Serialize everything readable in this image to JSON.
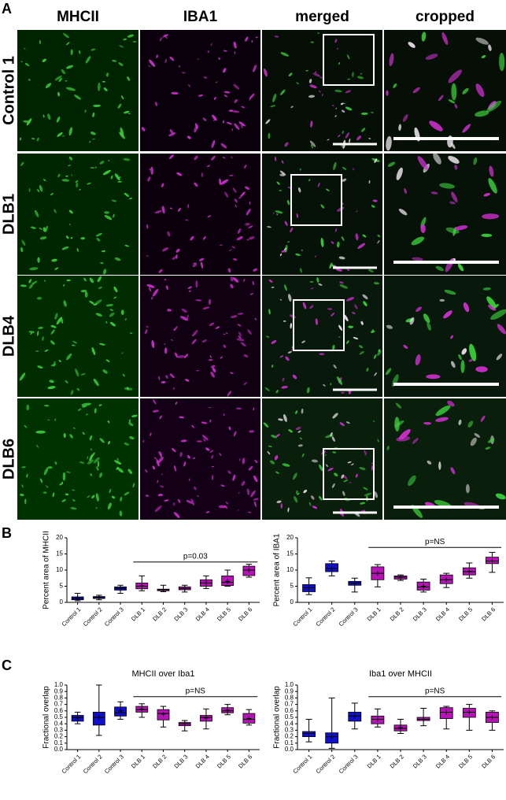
{
  "panel_a": {
    "columns": [
      "MHCII",
      "IBA1",
      "merged",
      "cropped"
    ],
    "rows": [
      "Control 1",
      "DLB1",
      "DLB4",
      "DLB6"
    ]
  },
  "panel_labels": [
    "A",
    "B",
    "C"
  ],
  "chart_data": [
    {
      "type": "box",
      "ylabel": "Percent area of MHCII",
      "ylim": [
        0,
        20
      ],
      "yticks": [
        0,
        5,
        10,
        15,
        20
      ],
      "categories": [
        "Control 1",
        "Control 2",
        "Control 3",
        "DLB 1",
        "DLB 2",
        "DLB 3",
        "DLB 4",
        "DLB 5",
        "DLB 6"
      ],
      "colors": [
        "#1010c8",
        "#1010c8",
        "#1010c8",
        "#b414b4",
        "#b414b4",
        "#b414b4",
        "#b414b4",
        "#b414b4",
        "#b414b4"
      ],
      "annotation": {
        "text": "p=0.03",
        "y": 12.5
      },
      "values": [
        {
          "min": 0.5,
          "q1": 0.8,
          "median": 1.2,
          "q3": 1.7,
          "max": 2.8,
          "mean": 1.3
        },
        {
          "min": 0.8,
          "q1": 1.2,
          "median": 1.5,
          "q3": 1.8,
          "max": 2.2,
          "mean": 1.5
        },
        {
          "min": 2.8,
          "q1": 3.8,
          "median": 4.3,
          "q3": 4.8,
          "max": 5.3,
          "mean": 4.3
        },
        {
          "min": 3.6,
          "q1": 4.2,
          "median": 5,
          "q3": 6,
          "max": 8.2,
          "mean": 5.1
        },
        {
          "min": 3.3,
          "q1": 3.6,
          "median": 3.9,
          "q3": 4.1,
          "max": 5.3,
          "mean": 3.9
        },
        {
          "min": 3.2,
          "q1": 3.9,
          "median": 4.3,
          "q3": 4.8,
          "max": 5.3,
          "mean": 4.3
        },
        {
          "min": 4.3,
          "q1": 5,
          "median": 6,
          "q3": 7,
          "max": 8.2,
          "mean": 6
        },
        {
          "min": 5,
          "q1": 5.2,
          "median": 6.2,
          "q3": 8.2,
          "max": 10,
          "mean": 6.5
        },
        {
          "min": 7.8,
          "q1": 8.3,
          "median": 10,
          "q3": 11.2,
          "max": 11.8,
          "mean": 10
        }
      ]
    },
    {
      "type": "box",
      "ylabel": "Percent area of IBA1",
      "ylim": [
        0,
        20
      ],
      "yticks": [
        0,
        5,
        10,
        15,
        20
      ],
      "categories": [
        "Control 1",
        "Control 2",
        "Control 3",
        "DLB 1",
        "DLB 2",
        "DLB 3",
        "DLB 4",
        "DLB 5",
        "DLB 6"
      ],
      "colors": [
        "#1010c8",
        "#1010c8",
        "#1010c8",
        "#b414b4",
        "#b414b4",
        "#b414b4",
        "#b414b4",
        "#b414b4",
        "#b414b4"
      ],
      "annotation": {
        "text": "p=NS",
        "y": 17
      },
      "values": [
        {
          "min": 2.4,
          "q1": 3.3,
          "median": 4.5,
          "q3": 5.5,
          "max": 7.6,
          "mean": 4.5
        },
        {
          "min": 8.2,
          "q1": 9.5,
          "median": 10.5,
          "q3": 12,
          "max": 12.8,
          "mean": 10.5
        },
        {
          "min": 3.2,
          "q1": 5.3,
          "median": 6,
          "q3": 6.5,
          "max": 7.5,
          "mean": 5.9
        },
        {
          "min": 4.8,
          "q1": 7,
          "median": 9,
          "q3": 11,
          "max": 11.7,
          "mean": 9
        },
        {
          "min": 6.8,
          "q1": 7.2,
          "median": 7.8,
          "q3": 8.2,
          "max": 8.5,
          "mean": 7.7
        },
        {
          "min": 3.2,
          "q1": 3.8,
          "median": 4.8,
          "q3": 6.3,
          "max": 7.2,
          "mean": 5
        },
        {
          "min": 4.6,
          "q1": 5.8,
          "median": 7,
          "q3": 8.5,
          "max": 9,
          "mean": 7
        },
        {
          "min": 7.5,
          "q1": 8.5,
          "median": 9.5,
          "q3": 10.7,
          "max": 12.2,
          "mean": 9.6
        },
        {
          "min": 9.3,
          "q1": 12,
          "median": 12.8,
          "q3": 14,
          "max": 15.5,
          "mean": 12.8
        }
      ]
    },
    {
      "type": "box",
      "title": "MHCII over Iba1",
      "ylabel": "Fractional overlap",
      "ylim": [
        0,
        1
      ],
      "yticks": [
        {
          "value": 0,
          "label": "0.0"
        },
        0.1,
        0.2,
        0.3,
        0.4,
        0.5,
        0.6,
        0.7,
        0.8,
        0.9,
        {
          "value": 1,
          "label": "1.0"
        }
      ],
      "categories": [
        "Control 1",
        "Control 2",
        "Control 3",
        "DLB 1",
        "DLB 2",
        "DLB 3",
        "DLB 4",
        "DLB 5",
        "DLB 6"
      ],
      "colors": [
        "#1010c8",
        "#1010c8",
        "#1010c8",
        "#b414b4",
        "#b414b4",
        "#b414b4",
        "#b414b4",
        "#b414b4",
        "#b414b4"
      ],
      "annotation": {
        "text": "p=NS",
        "y": 0.82
      },
      "values": [
        {
          "min": 0.4,
          "q1": 0.44,
          "median": 0.5,
          "q3": 0.53,
          "max": 0.58,
          "mean": 0.49
        },
        {
          "min": 0.22,
          "q1": 0.38,
          "median": 0.5,
          "q3": 0.58,
          "max": 1.0,
          "mean": 0.5
        },
        {
          "min": 0.47,
          "q1": 0.52,
          "median": 0.57,
          "q3": 0.66,
          "max": 0.74,
          "mean": 0.6
        },
        {
          "min": 0.5,
          "q1": 0.58,
          "median": 0.62,
          "q3": 0.67,
          "max": 0.71,
          "mean": 0.63
        },
        {
          "min": 0.35,
          "q1": 0.46,
          "median": 0.56,
          "q3": 0.62,
          "max": 0.67,
          "mean": 0.55
        },
        {
          "min": 0.29,
          "q1": 0.37,
          "median": 0.4,
          "q3": 0.42,
          "max": 0.45,
          "mean": 0.4
        },
        {
          "min": 0.32,
          "q1": 0.44,
          "median": 0.5,
          "q3": 0.53,
          "max": 0.63,
          "mean": 0.49
        },
        {
          "min": 0.54,
          "q1": 0.57,
          "median": 0.6,
          "q3": 0.65,
          "max": 0.7,
          "mean": 0.61
        },
        {
          "min": 0.38,
          "q1": 0.41,
          "median": 0.47,
          "q3": 0.56,
          "max": 0.62,
          "mean": 0.48
        }
      ]
    },
    {
      "type": "box",
      "title": "Iba1 over MHCII",
      "ylabel": "Fractional overlap",
      "ylim": [
        0,
        1
      ],
      "yticks": [
        {
          "value": 0,
          "label": "0.0"
        },
        0.1,
        0.2,
        0.3,
        0.4,
        0.5,
        0.6,
        0.7,
        0.8,
        0.9,
        {
          "value": 1,
          "label": "1.0"
        }
      ],
      "categories": [
        "Control 1",
        "Control 2",
        "Control 3",
        "DLB 1",
        "DLB 2",
        "DLB 3",
        "DLB 4",
        "DLB 5",
        "DLB 6"
      ],
      "colors": [
        "#1010c8",
        "#1010c8",
        "#1010c8",
        "#b414b4",
        "#b414b4",
        "#b414b4",
        "#b414b4",
        "#b414b4",
        "#b414b4"
      ],
      "annotation": {
        "text": "p=NS",
        "y": 0.82
      },
      "values": [
        {
          "min": 0.12,
          "q1": 0.2,
          "median": 0.25,
          "q3": 0.28,
          "max": 0.47,
          "mean": 0.25
        },
        {
          "min": 0.02,
          "q1": 0.1,
          "median": 0.2,
          "q3": 0.26,
          "max": 0.8,
          "mean": 0.2
        },
        {
          "min": 0.32,
          "q1": 0.44,
          "median": 0.52,
          "q3": 0.58,
          "max": 0.72,
          "mean": 0.52
        },
        {
          "min": 0.35,
          "q1": 0.4,
          "median": 0.47,
          "q3": 0.52,
          "max": 0.63,
          "mean": 0.47
        },
        {
          "min": 0.25,
          "q1": 0.29,
          "median": 0.33,
          "q3": 0.38,
          "max": 0.47,
          "mean": 0.34
        },
        {
          "min": 0.37,
          "q1": 0.45,
          "median": 0.47,
          "q3": 0.5,
          "max": 0.64,
          "mean": 0.47
        },
        {
          "min": 0.32,
          "q1": 0.48,
          "median": 0.58,
          "q3": 0.65,
          "max": 0.67,
          "mean": 0.58
        },
        {
          "min": 0.3,
          "q1": 0.5,
          "median": 0.58,
          "q3": 0.64,
          "max": 0.7,
          "mean": 0.58
        },
        {
          "min": 0.3,
          "q1": 0.42,
          "median": 0.5,
          "q3": 0.58,
          "max": 0.6,
          "mean": 0.5
        }
      ]
    }
  ]
}
